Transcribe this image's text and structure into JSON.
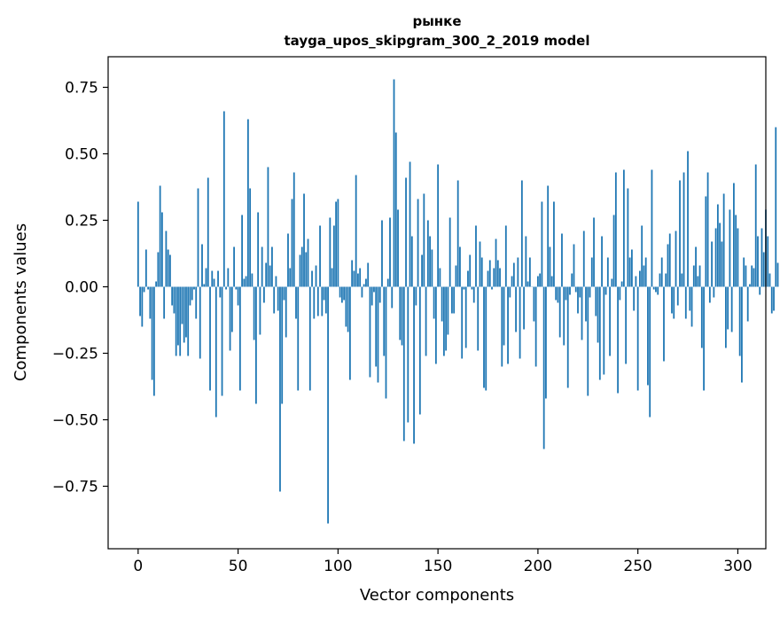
{
  "chart_data": {
    "type": "bar",
    "title": "рынке",
    "subtitle": "tayga_upos_skipgram_300_2_2019 model",
    "xlabel": "Vector components",
    "ylabel": "Components values",
    "xlim": [
      -15,
      314
    ],
    "ylim": [
      -0.985,
      0.865
    ],
    "xticks": [
      0,
      50,
      100,
      150,
      200,
      250,
      300
    ],
    "xtick_labels": [
      "0",
      "50",
      "100",
      "150",
      "200",
      "250",
      "300"
    ],
    "yticks": [
      -0.75,
      -0.5,
      -0.25,
      0.0,
      0.25,
      0.5,
      0.75
    ],
    "ytick_labels": [
      "−0.75",
      "−0.50",
      "−0.25",
      "0.00",
      "0.25",
      "0.50",
      "0.75"
    ],
    "grid": false,
    "bar_color": "#1f77b4",
    "values": [
      0.32,
      -0.11,
      -0.15,
      -0.02,
      0.14,
      -0.01,
      -0.12,
      -0.35,
      -0.41,
      0.02,
      0.13,
      0.38,
      0.28,
      -0.12,
      0.21,
      0.14,
      0.12,
      -0.07,
      -0.1,
      -0.26,
      -0.22,
      -0.26,
      -0.14,
      -0.21,
      -0.19,
      -0.26,
      -0.07,
      -0.05,
      -0.01,
      -0.12,
      0.37,
      -0.27,
      0.16,
      0.01,
      0.07,
      0.41,
      -0.39,
      0.06,
      0.03,
      -0.49,
      0.06,
      -0.04,
      -0.41,
      0.66,
      -0.01,
      0.07,
      -0.24,
      -0.17,
      0.15,
      -0.01,
      -0.07,
      -0.39,
      0.27,
      0.03,
      0.04,
      0.63,
      0.37,
      0.05,
      -0.2,
      -0.44,
      0.28,
      -0.18,
      0.15,
      -0.06,
      0.09,
      0.45,
      0.08,
      0.15,
      -0.1,
      0.04,
      -0.09,
      -0.77,
      -0.44,
      -0.05,
      -0.19,
      0.2,
      0.07,
      0.33,
      0.43,
      -0.12,
      -0.39,
      0.12,
      0.15,
      0.35,
      0.13,
      0.18,
      -0.39,
      0.06,
      -0.12,
      0.08,
      -0.11,
      0.23,
      -0.11,
      -0.05,
      -0.1,
      -0.89,
      0.26,
      0.07,
      0.23,
      0.32,
      0.33,
      -0.04,
      -0.06,
      -0.05,
      -0.15,
      -0.17,
      -0.35,
      0.1,
      0.06,
      0.42,
      0.05,
      0.07,
      -0.04,
      0.01,
      0.03,
      0.09,
      -0.34,
      -0.07,
      -0.02,
      -0.3,
      -0.36,
      -0.06,
      0.25,
      -0.26,
      -0.42,
      0.03,
      0.26,
      -0.08,
      0.78,
      0.58,
      0.29,
      -0.2,
      -0.22,
      -0.58,
      0.41,
      -0.51,
      0.47,
      0.19,
      -0.59,
      -0.07,
      0.33,
      -0.48,
      0.12,
      0.35,
      -0.26,
      0.25,
      0.19,
      0.14,
      -0.12,
      -0.29,
      0.46,
      0.07,
      -0.13,
      -0.26,
      -0.24,
      -0.18,
      0.26,
      -0.1,
      -0.1,
      0.08,
      0.4,
      0.15,
      -0.27,
      -0.01,
      -0.23,
      0.06,
      0.12,
      -0.01,
      -0.06,
      0.23,
      -0.24,
      0.17,
      0.11,
      -0.38,
      -0.39,
      0.06,
      0.1,
      -0.01,
      0.07,
      0.18,
      0.1,
      0.07,
      -0.3,
      -0.22,
      0.23,
      -0.29,
      -0.04,
      0.04,
      0.09,
      -0.17,
      0.11,
      -0.27,
      0.4,
      -0.16,
      0.19,
      0.02,
      0.11,
      0.0,
      -0.13,
      -0.3,
      0.04,
      0.05,
      0.32,
      -0.61,
      -0.42,
      0.38,
      0.15,
      0.04,
      0.32,
      -0.05,
      -0.06,
      -0.19,
      0.2,
      -0.22,
      -0.05,
      -0.38,
      -0.03,
      0.05,
      0.16,
      -0.02,
      -0.1,
      -0.04,
      -0.2,
      0.21,
      -0.13,
      -0.41,
      -0.04,
      0.11,
      0.26,
      -0.11,
      -0.21,
      -0.35,
      0.19,
      -0.33,
      -0.03,
      0.11,
      -0.26,
      0.03,
      0.27,
      0.43,
      -0.4,
      -0.05,
      0.02,
      0.44,
      -0.29,
      0.37,
      0.11,
      0.14,
      -0.09,
      0.04,
      -0.39,
      0.06,
      0.23,
      0.08,
      0.11,
      -0.37,
      -0.49,
      0.44,
      -0.01,
      -0.02,
      -0.03,
      0.05,
      0.11,
      -0.28,
      0.05,
      0.16,
      0.2,
      -0.1,
      -0.12,
      0.21,
      -0.07,
      0.4,
      0.05,
      0.43,
      -0.12,
      0.51,
      -0.09,
      -0.15,
      0.08,
      0.15,
      0.04,
      0.08,
      -0.23,
      -0.39,
      0.34,
      0.43,
      -0.06,
      0.17,
      -0.04,
      0.22,
      0.31,
      0.24,
      0.17,
      0.35,
      -0.23,
      -0.16,
      0.29,
      -0.17,
      0.39,
      0.27,
      0.22,
      -0.26,
      -0.36,
      0.11,
      0.08,
      -0.13,
      0.01,
      0.08,
      0.07,
      0.46,
      0.19,
      -0.03,
      0.22,
      0.13,
      0.29,
      0.19,
      0.05,
      -0.1,
      -0.09,
      0.6,
      0.09
    ]
  }
}
